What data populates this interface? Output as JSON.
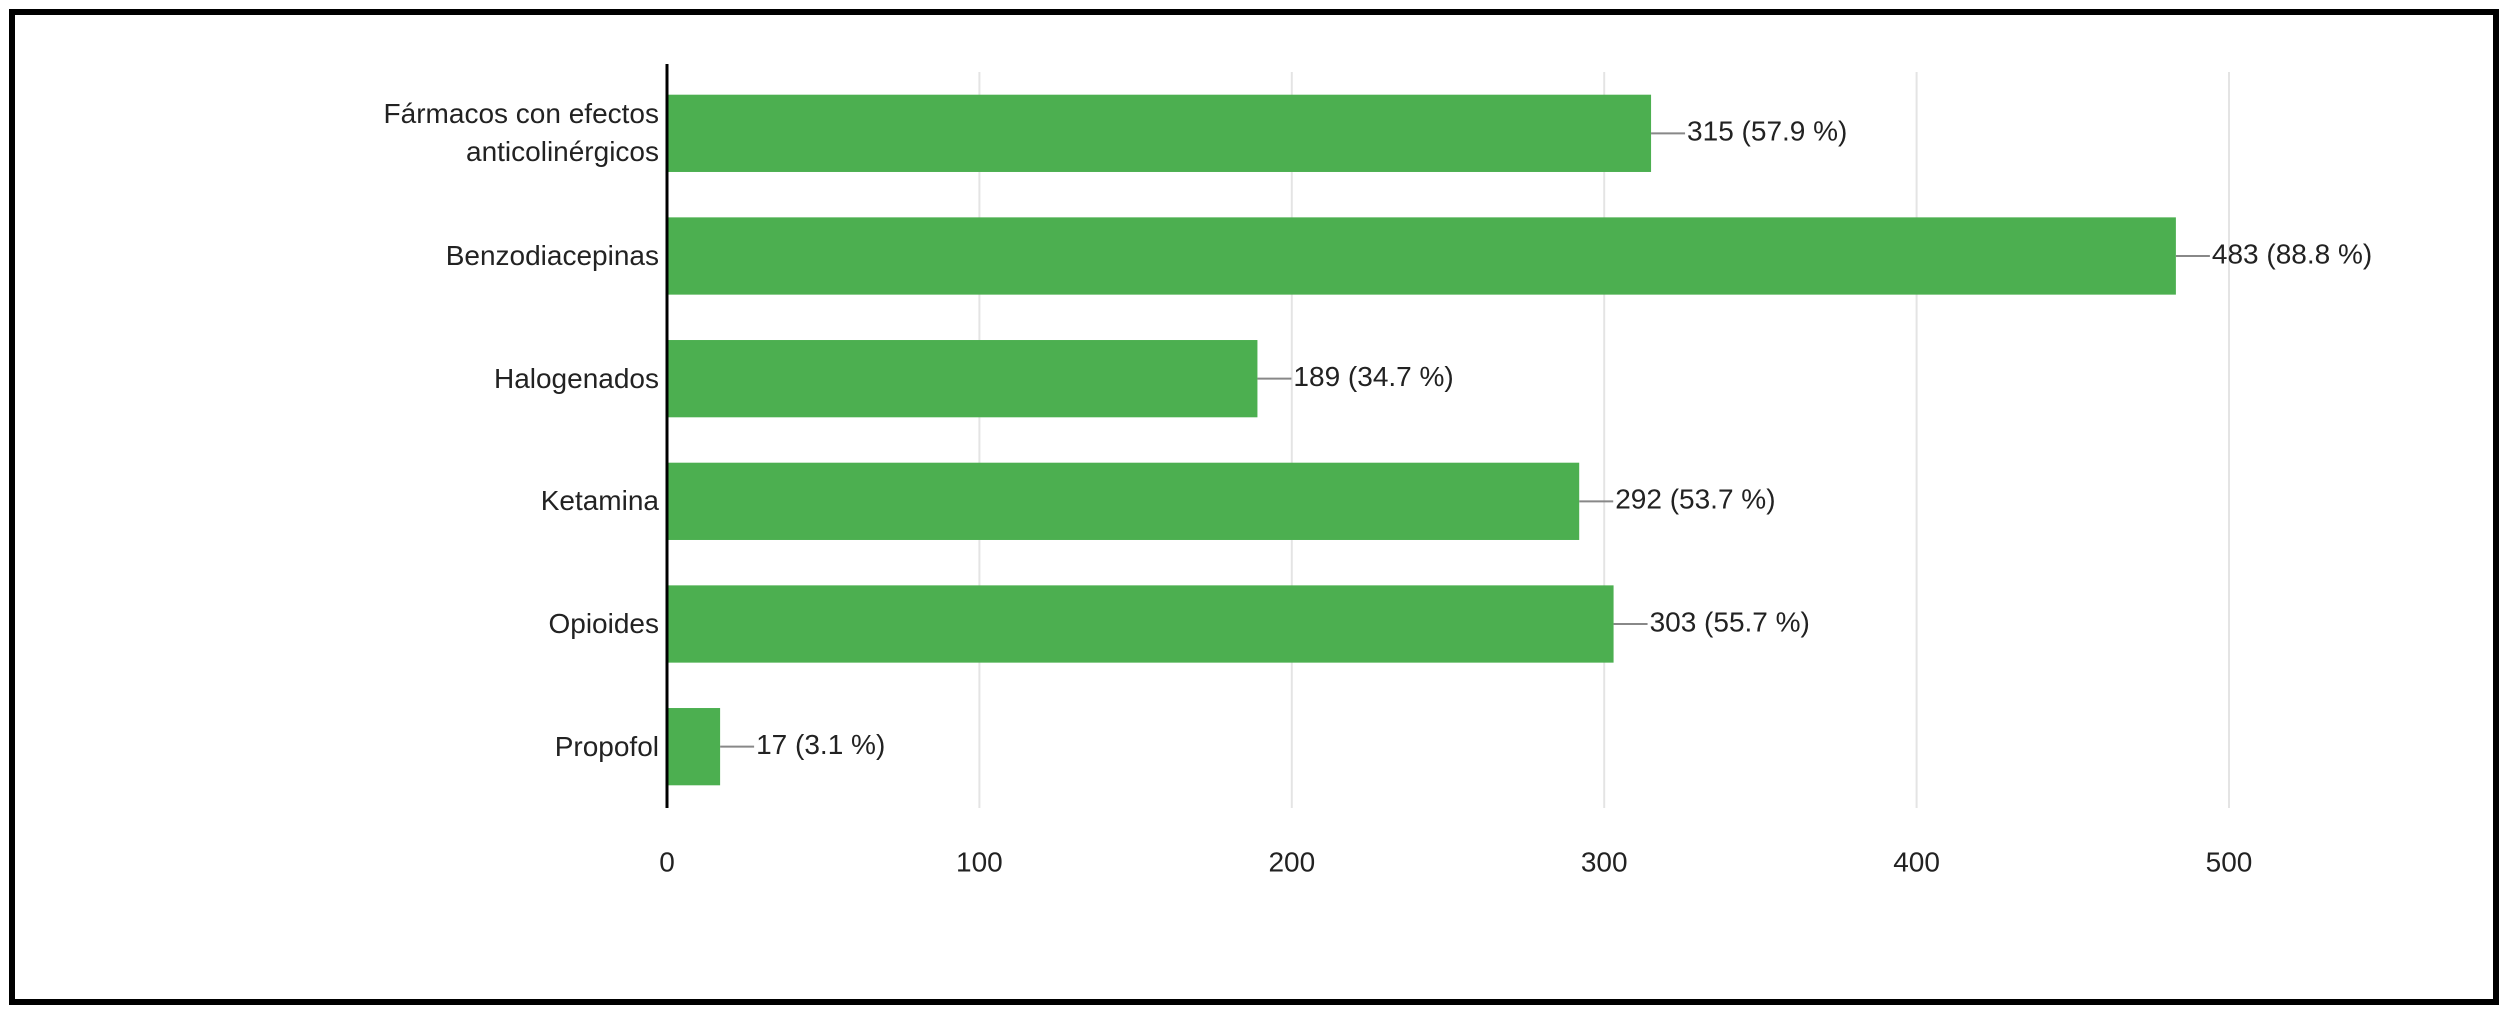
{
  "chart_data": {
    "type": "bar",
    "orientation": "horizontal",
    "categories": [
      "Fármacos con efectos anticolinérgicos",
      "Benzodiacepinas",
      "Halogenados",
      "Ketamina",
      "Opioides",
      "Propofol"
    ],
    "values": [
      315,
      483,
      189,
      292,
      303,
      17
    ],
    "value_labels": [
      "315 (57.9 %)",
      "483 (88.8 %)",
      "189 (34.7 %)",
      "292 (53.7 %)",
      "303 (55.7 %)",
      "17 (3.1 %)"
    ],
    "color": "#4caf50",
    "xlim": [
      0,
      500
    ],
    "xticks": [
      0,
      100,
      200,
      300,
      400,
      500
    ],
    "grid": true
  }
}
